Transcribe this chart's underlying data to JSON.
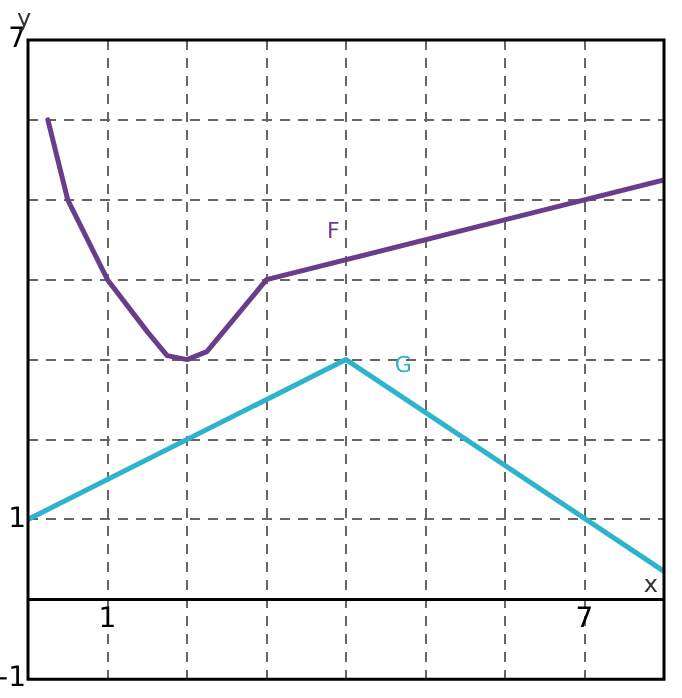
{
  "chart_data": {
    "type": "line",
    "xlabel": "x",
    "ylabel": "y",
    "xlim": [
      0,
      8
    ],
    "ylim": [
      -1,
      7
    ],
    "xticks": [
      {
        "value": 1,
        "label": "1"
      },
      {
        "value": 2,
        "label": null
      },
      {
        "value": 3,
        "label": null
      },
      {
        "value": 4,
        "label": null
      },
      {
        "value": 5,
        "label": null
      },
      {
        "value": 6,
        "label": null
      },
      {
        "value": 7,
        "label": "7"
      }
    ],
    "yticks": [
      {
        "value": -1,
        "label": "-1"
      },
      {
        "value": 0,
        "label": null
      },
      {
        "value": 1,
        "label": "1"
      },
      {
        "value": 2,
        "label": null
      },
      {
        "value": 3,
        "label": null
      },
      {
        "value": 4,
        "label": null
      },
      {
        "value": 5,
        "label": null
      },
      {
        "value": 6,
        "label": null
      },
      {
        "value": 7,
        "label": "7"
      }
    ],
    "grid": true,
    "marker": "none",
    "line_style": "solid",
    "legend": false,
    "series": [
      {
        "name": "F",
        "color": "#6a3d8a",
        "x": [
          0.25,
          0.5,
          1,
          1.5,
          1.75,
          2,
          2.25,
          2.5,
          3,
          8
        ],
        "values": [
          6,
          5,
          4,
          3.35,
          3.05,
          3,
          3.1,
          3.4,
          4,
          5.25
        ]
      },
      {
        "name": "G",
        "color": "#2eb3cc",
        "x": [
          0,
          4,
          8
        ],
        "values": [
          1,
          3,
          0.35
        ]
      }
    ]
  }
}
